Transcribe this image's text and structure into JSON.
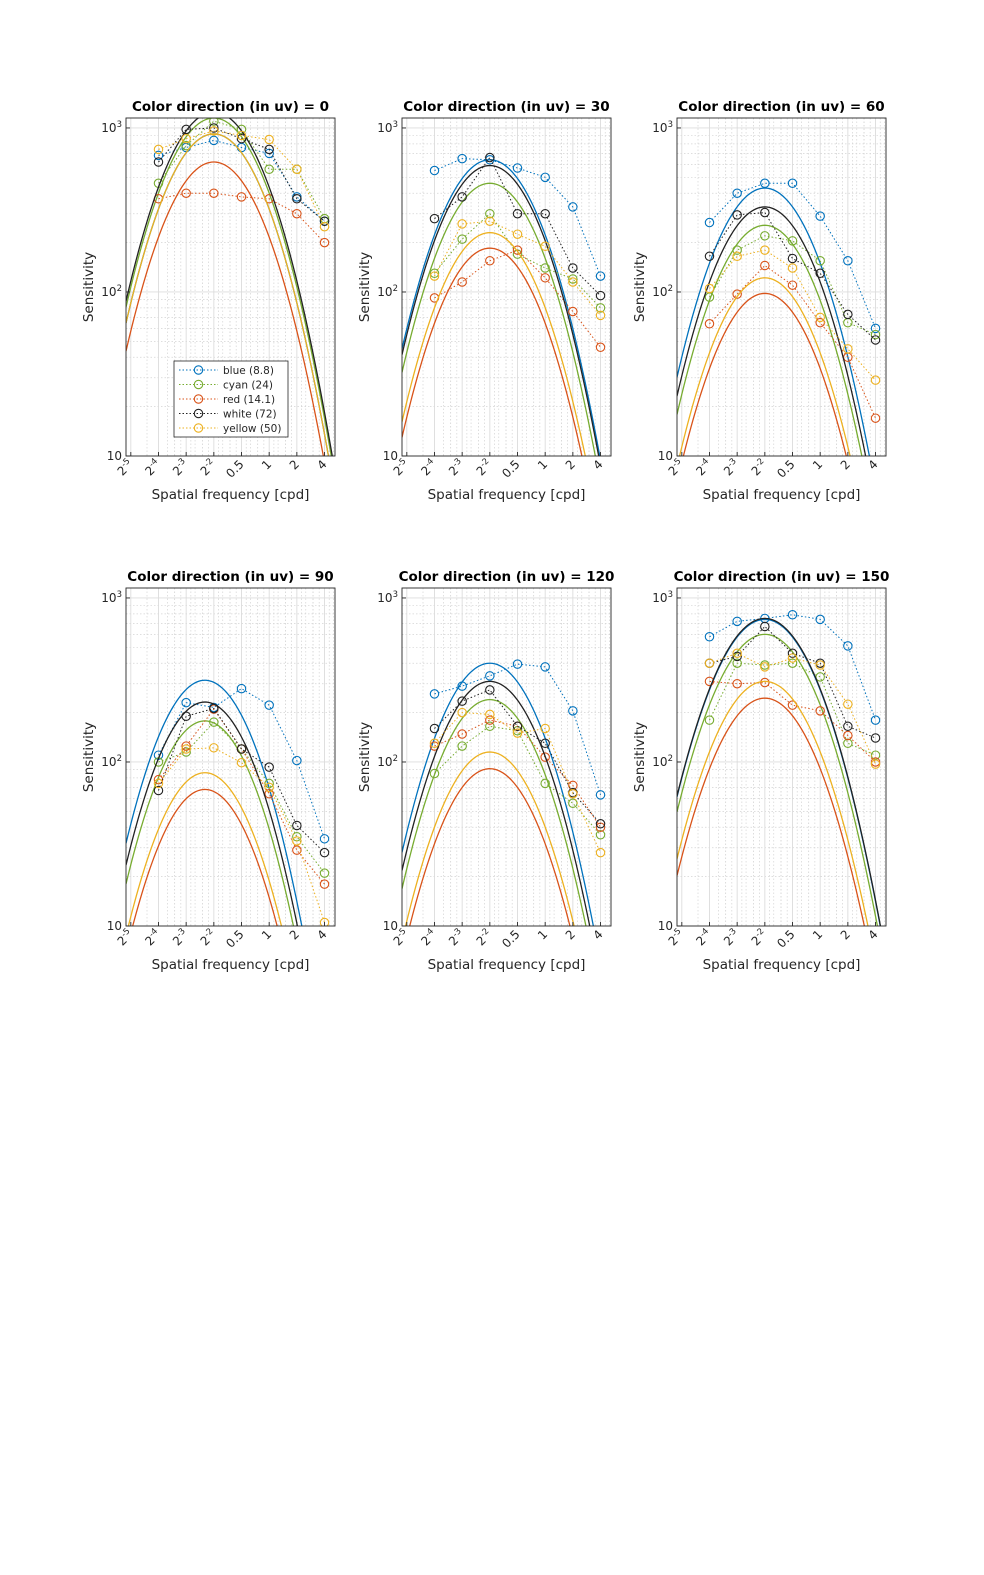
{
  "figure": {
    "xlabel": "Spatial frequency [cpd]",
    "ylabel": "Sensitivity",
    "x_scale": "log2",
    "y_scale": "log10",
    "xlim": [
      0.0277,
      5.2
    ],
    "ylim": [
      10,
      1150
    ],
    "x_ticks": [
      {
        "value": 0.03125,
        "base": "2",
        "exp": "-5"
      },
      {
        "value": 0.0625,
        "base": "2",
        "exp": "-4"
      },
      {
        "value": 0.125,
        "base": "2",
        "exp": "-3"
      },
      {
        "value": 0.25,
        "base": "2",
        "exp": "-2"
      },
      {
        "value": 0.5,
        "base": "0.5",
        "exp": ""
      },
      {
        "value": 1,
        "base": "1",
        "exp": ""
      },
      {
        "value": 2,
        "base": "2",
        "exp": ""
      },
      {
        "value": 4,
        "base": "4",
        "exp": ""
      }
    ],
    "y_ticks": [
      {
        "value": 10,
        "base": "10",
        "exp": ""
      },
      {
        "value": 100,
        "base": "10",
        "exp": "2"
      },
      {
        "value": 1000,
        "base": "10",
        "exp": "3"
      }
    ],
    "grid": true,
    "legend_location": "lower-left of first panel"
  },
  "colors": {
    "blue": "#0072BD",
    "cyan": "#77AC30",
    "red": "#D95319",
    "white": "#222222",
    "yellow": "#EDB120"
  },
  "legend": [
    {
      "key": "blue",
      "label": "blue (8.8)"
    },
    {
      "key": "cyan",
      "label": "cyan (24)"
    },
    {
      "key": "red",
      "label": "red (14.1)"
    },
    {
      "key": "white",
      "label": "white (72)"
    },
    {
      "key": "yellow",
      "label": "yellow (50)"
    }
  ],
  "chart_data": [
    {
      "type": "line",
      "title": "Color direction (in uv) = 0",
      "x": [
        0.0625,
        0.125,
        0.25,
        0.5,
        1,
        2,
        4
      ],
      "series": [
        {
          "name": "blue (8.8)",
          "key": "blue",
          "values": [
            680,
            760,
            840,
            760,
            700,
            380,
            270
          ],
          "fit": {
            "peak": 920,
            "fpeak": 0.25,
            "width": 1.55
          }
        },
        {
          "name": "cyan (24)",
          "key": "cyan",
          "values": [
            460,
            780,
            1100,
            980,
            560,
            560,
            280
          ],
          "fit": {
            "peak": 1150,
            "fpeak": 0.25,
            "width": 1.55
          }
        },
        {
          "name": "red (14.1)",
          "key": "red",
          "values": [
            370,
            400,
            400,
            380,
            370,
            300,
            200
          ],
          "fit": {
            "peak": 620,
            "fpeak": 0.25,
            "width": 1.55
          }
        },
        {
          "name": "white (72)",
          "key": "white",
          "values": [
            620,
            980,
            1000,
            860,
            740,
            370,
            270
          ],
          "fit": {
            "peak": 1250,
            "fpeak": 0.25,
            "width": 1.55
          }
        },
        {
          "name": "yellow (50)",
          "key": "yellow",
          "values": [
            740,
            860,
            960,
            900,
            850,
            560,
            250
          ],
          "fit": {
            "peak": 920,
            "fpeak": 0.25,
            "width": 1.55
          }
        }
      ]
    },
    {
      "type": "line",
      "title": "Color direction (in uv) = 30",
      "x": [
        0.0625,
        0.125,
        0.25,
        0.5,
        1,
        2,
        4
      ],
      "series": [
        {
          "name": "blue (8.8)",
          "key": "blue",
          "values": [
            550,
            650,
            640,
            570,
            500,
            330,
            125
          ],
          "fit": {
            "peak": 640,
            "fpeak": 0.25,
            "width": 1.55
          }
        },
        {
          "name": "cyan (24)",
          "key": "cyan",
          "values": [
            130,
            210,
            300,
            170,
            140,
            120,
            80
          ],
          "fit": {
            "peak": 460,
            "fpeak": 0.25,
            "width": 1.55
          }
        },
        {
          "name": "red (14.1)",
          "key": "red",
          "values": [
            92,
            115,
            155,
            180,
            122,
            76,
            46
          ],
          "fit": {
            "peak": 185,
            "fpeak": 0.25,
            "width": 1.55
          }
        },
        {
          "name": "white (72)",
          "key": "white",
          "values": [
            280,
            380,
            660,
            300,
            300,
            140,
            95
          ],
          "fit": {
            "peak": 590,
            "fpeak": 0.25,
            "width": 1.55
          }
        },
        {
          "name": "yellow (50)",
          "key": "yellow",
          "values": [
            125,
            260,
            270,
            225,
            190,
            115,
            72
          ],
          "fit": {
            "peak": 230,
            "fpeak": 0.25,
            "width": 1.55
          }
        }
      ]
    },
    {
      "type": "line",
      "title": "Color direction (in uv) = 60",
      "x": [
        0.0625,
        0.125,
        0.25,
        0.5,
        1,
        2,
        4
      ],
      "series": [
        {
          "name": "blue (8.8)",
          "key": "blue",
          "values": [
            265,
            400,
            460,
            460,
            290,
            155,
            60
          ],
          "fit": {
            "peak": 430,
            "fpeak": 0.25,
            "width": 1.55
          }
        },
        {
          "name": "cyan (24)",
          "key": "cyan",
          "values": [
            93,
            180,
            220,
            205,
            155,
            65,
            55
          ],
          "fit": {
            "peak": 255,
            "fpeak": 0.25,
            "width": 1.55
          }
        },
        {
          "name": "red (14.1)",
          "key": "red",
          "values": [
            64,
            97,
            145,
            110,
            65,
            40,
            17
          ],
          "fit": {
            "peak": 98,
            "fpeak": 0.25,
            "width": 1.55
          }
        },
        {
          "name": "white (72)",
          "key": "white",
          "values": [
            165,
            295,
            305,
            160,
            130,
            73,
            51
          ],
          "fit": {
            "peak": 330,
            "fpeak": 0.25,
            "width": 1.55
          }
        },
        {
          "name": "yellow (50)",
          "key": "yellow",
          "values": [
            105,
            165,
            180,
            140,
            70,
            45,
            29
          ],
          "fit": {
            "peak": 122,
            "fpeak": 0.25,
            "width": 1.55
          }
        }
      ]
    },
    {
      "type": "line",
      "title": "Color direction (in uv) = 90",
      "x": [
        0.0625,
        0.125,
        0.25,
        0.5,
        1,
        2,
        4
      ],
      "series": [
        {
          "name": "blue (8.8)",
          "key": "blue",
          "values": [
            110,
            230,
            215,
            280,
            222,
            102,
            34
          ],
          "fit": {
            "peak": 315,
            "fpeak": 0.2,
            "width": 1.5
          }
        },
        {
          "name": "cyan (24)",
          "key": "cyan",
          "values": [
            100,
            115,
            175,
            120,
            74,
            35,
            21
          ],
          "fit": {
            "peak": 178,
            "fpeak": 0.2,
            "width": 1.5
          }
        },
        {
          "name": "red (14.1)",
          "key": "red",
          "values": [
            78,
            125,
            210,
            120,
            64,
            29,
            18
          ],
          "fit": {
            "peak": 68,
            "fpeak": 0.2,
            "width": 1.5
          }
        },
        {
          "name": "white (72)",
          "key": "white",
          "values": [
            67,
            190,
            212,
            120,
            93,
            41,
            28
          ],
          "fit": {
            "peak": 232,
            "fpeak": 0.2,
            "width": 1.5
          }
        },
        {
          "name": "yellow (50)",
          "key": "yellow",
          "values": [
            74,
            120,
            122,
            99,
            70,
            33,
            10.5
          ],
          "fit": {
            "peak": 86,
            "fpeak": 0.2,
            "width": 1.5
          }
        }
      ]
    },
    {
      "type": "line",
      "title": "Color direction (in uv) = 120",
      "x": [
        0.0625,
        0.125,
        0.25,
        0.5,
        1,
        2,
        4
      ],
      "series": [
        {
          "name": "blue (8.8)",
          "key": "blue",
          "values": [
            260,
            290,
            335,
            395,
            380,
            205,
            63
          ],
          "fit": {
            "peak": 400,
            "fpeak": 0.25,
            "width": 1.55
          }
        },
        {
          "name": "cyan (24)",
          "key": "cyan",
          "values": [
            85,
            125,
            165,
            155,
            74,
            56,
            36
          ],
          "fit": {
            "peak": 240,
            "fpeak": 0.25,
            "width": 1.55
          }
        },
        {
          "name": "red (14.1)",
          "key": "red",
          "values": [
            125,
            148,
            180,
            165,
            107,
            72,
            40
          ],
          "fit": {
            "peak": 91,
            "fpeak": 0.25,
            "width": 1.55
          }
        },
        {
          "name": "white (72)",
          "key": "white",
          "values": [
            160,
            235,
            275,
            165,
            130,
            65,
            42
          ],
          "fit": {
            "peak": 310,
            "fpeak": 0.25,
            "width": 1.55
          }
        },
        {
          "name": "yellow (50)",
          "key": "yellow",
          "values": [
            130,
            200,
            195,
            150,
            160,
            64,
            28
          ],
          "fit": {
            "peak": 115,
            "fpeak": 0.25,
            "width": 1.55
          }
        }
      ]
    },
    {
      "type": "line",
      "title": "Color direction (in uv) = 150",
      "x": [
        0.0625,
        0.125,
        0.25,
        0.5,
        1,
        2,
        4
      ],
      "series": [
        {
          "name": "blue (8.8)",
          "key": "blue",
          "values": [
            580,
            720,
            750,
            790,
            740,
            510,
            180
          ],
          "fit": {
            "peak": 740,
            "fpeak": 0.25,
            "width": 1.6
          }
        },
        {
          "name": "cyan (24)",
          "key": "cyan",
          "values": [
            180,
            400,
            390,
            400,
            330,
            130,
            110
          ],
          "fit": {
            "peak": 600,
            "fpeak": 0.25,
            "width": 1.6
          }
        },
        {
          "name": "red (14.1)",
          "key": "red",
          "values": [
            310,
            300,
            305,
            222,
            205,
            145,
            100
          ],
          "fit": {
            "peak": 245,
            "fpeak": 0.25,
            "width": 1.6
          }
        },
        {
          "name": "white (72)",
          "key": "white",
          "values": [
            400,
            440,
            670,
            460,
            400,
            165,
            140
          ],
          "fit": {
            "peak": 750,
            "fpeak": 0.25,
            "width": 1.6
          }
        },
        {
          "name": "yellow (50)",
          "key": "yellow",
          "values": [
            400,
            460,
            380,
            430,
            390,
            225,
            97
          ],
          "fit": {
            "peak": 310,
            "fpeak": 0.25,
            "width": 1.6
          }
        }
      ]
    }
  ]
}
